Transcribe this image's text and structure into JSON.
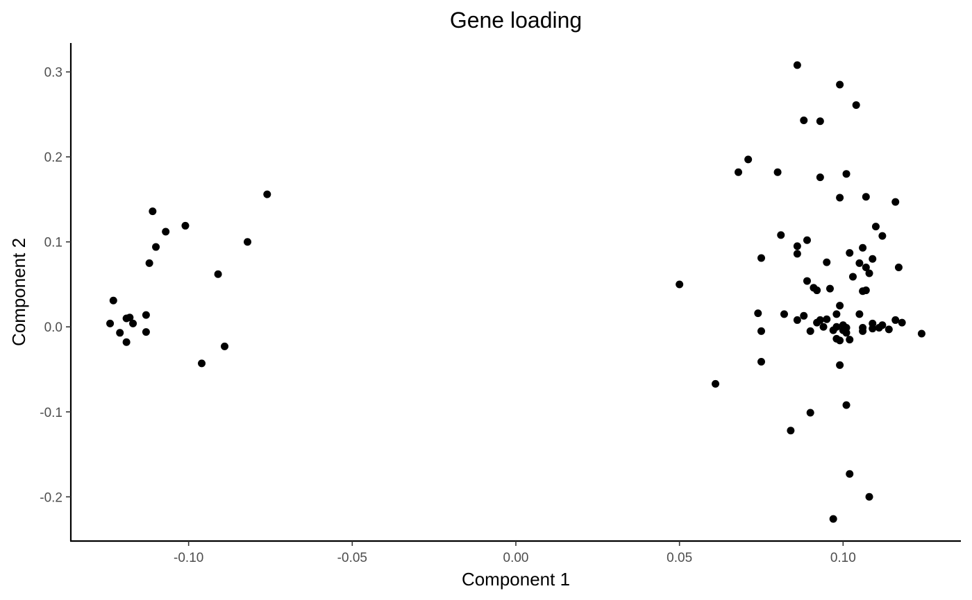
{
  "chart_data": {
    "type": "scatter",
    "title": "Gene loading",
    "xlabel": "Component 1",
    "ylabel": "Component 2",
    "xlim": [
      -0.136,
      0.136
    ],
    "ylim": [
      -0.252,
      0.334
    ],
    "xticks": [
      -0.1,
      -0.05,
      0.0,
      0.05,
      0.1
    ],
    "xtick_labels": [
      "-0.10",
      "-0.05",
      "0.00",
      "0.05",
      "0.10"
    ],
    "yticks": [
      -0.2,
      -0.1,
      0.0,
      0.1,
      0.2,
      0.3
    ],
    "ytick_labels": [
      "-0.2",
      "-0.1",
      "0.0",
      "0.1",
      "0.2",
      "0.3"
    ],
    "grid": false,
    "point_color": "#000000",
    "points": [
      [
        -0.124,
        0.004
      ],
      [
        -0.123,
        0.031
      ],
      [
        -0.121,
        -0.007
      ],
      [
        -0.119,
        -0.018
      ],
      [
        -0.119,
        0.01
      ],
      [
        -0.118,
        0.011
      ],
      [
        -0.117,
        0.004
      ],
      [
        -0.113,
        0.014
      ],
      [
        -0.113,
        -0.006
      ],
      [
        -0.112,
        0.075
      ],
      [
        -0.111,
        0.136
      ],
      [
        -0.11,
        0.094
      ],
      [
        -0.107,
        0.112
      ],
      [
        -0.101,
        0.119
      ],
      [
        -0.096,
        -0.043
      ],
      [
        -0.091,
        0.062
      ],
      [
        -0.089,
        -0.023
      ],
      [
        -0.082,
        0.1
      ],
      [
        -0.076,
        0.156
      ],
      [
        0.05,
        0.05
      ],
      [
        0.061,
        -0.067
      ],
      [
        0.068,
        0.182
      ],
      [
        0.071,
        0.197
      ],
      [
        0.074,
        0.016
      ],
      [
        0.075,
        -0.005
      ],
      [
        0.075,
        0.081
      ],
      [
        0.075,
        -0.041
      ],
      [
        0.08,
        0.182
      ],
      [
        0.081,
        0.108
      ],
      [
        0.082,
        0.015
      ],
      [
        0.084,
        -0.122
      ],
      [
        0.086,
        0.308
      ],
      [
        0.086,
        0.095
      ],
      [
        0.086,
        0.086
      ],
      [
        0.086,
        0.008
      ],
      [
        0.088,
        0.013
      ],
      [
        0.088,
        0.243
      ],
      [
        0.089,
        0.102
      ],
      [
        0.089,
        0.054
      ],
      [
        0.09,
        -0.005
      ],
      [
        0.09,
        -0.101
      ],
      [
        0.091,
        0.046
      ],
      [
        0.092,
        0.043
      ],
      [
        0.092,
        0.005
      ],
      [
        0.093,
        0.008
      ],
      [
        0.093,
        0.242
      ],
      [
        0.093,
        0.176
      ],
      [
        0.094,
        0.0
      ],
      [
        0.095,
        0.076
      ],
      [
        0.095,
        0.009
      ],
      [
        0.096,
        0.045
      ],
      [
        0.097,
        -0.004
      ],
      [
        0.097,
        -0.226
      ],
      [
        0.098,
        0.015
      ],
      [
        0.098,
        0.0
      ],
      [
        0.098,
        -0.014
      ],
      [
        0.099,
        0.285
      ],
      [
        0.099,
        0.152
      ],
      [
        0.099,
        0.025
      ],
      [
        0.099,
        -0.016
      ],
      [
        0.099,
        -0.045
      ],
      [
        0.1,
        0.002
      ],
      [
        0.1,
        -0.004
      ],
      [
        0.101,
        -0.092
      ],
      [
        0.101,
        0.18
      ],
      [
        0.101,
        -0.007
      ],
      [
        0.101,
        -0.001
      ],
      [
        0.102,
        -0.015
      ],
      [
        0.102,
        0.087
      ],
      [
        0.102,
        -0.173
      ],
      [
        0.103,
        0.059
      ],
      [
        0.104,
        0.261
      ],
      [
        0.105,
        0.075
      ],
      [
        0.105,
        0.015
      ],
      [
        0.106,
        0.093
      ],
      [
        0.106,
        -0.001
      ],
      [
        0.106,
        -0.005
      ],
      [
        0.106,
        0.042
      ],
      [
        0.107,
        0.043
      ],
      [
        0.107,
        0.153
      ],
      [
        0.107,
        0.07
      ],
      [
        0.108,
        -0.2
      ],
      [
        0.108,
        0.063
      ],
      [
        0.109,
        0.08
      ],
      [
        0.109,
        0.004
      ],
      [
        0.109,
        -0.002
      ],
      [
        0.11,
        0.118
      ],
      [
        0.111,
        -0.001
      ],
      [
        0.112,
        0.107
      ],
      [
        0.112,
        0.002
      ],
      [
        0.114,
        -0.003
      ],
      [
        0.116,
        0.147
      ],
      [
        0.116,
        0.008
      ],
      [
        0.117,
        0.07
      ],
      [
        0.118,
        0.005
      ],
      [
        0.124,
        -0.008
      ]
    ]
  }
}
